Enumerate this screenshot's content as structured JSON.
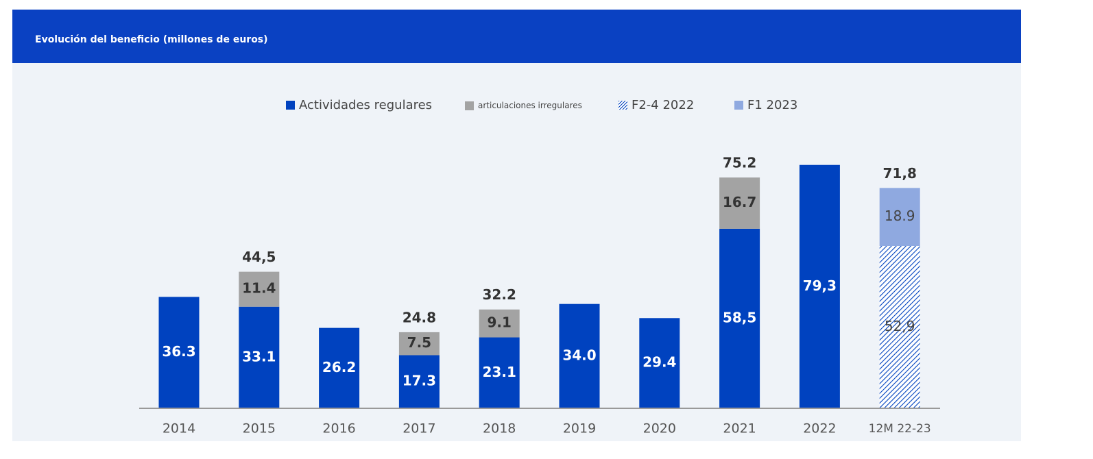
{
  "header": {
    "title": "Evolución del beneficio (millones de euros)"
  },
  "legend": {
    "regular": "Actividades regulares",
    "irregular": "articulaciones irregulares",
    "f24": "F2-4 2022",
    "f1": "F1 2023"
  },
  "colors": {
    "regular": "#0042bf",
    "irregular": "#a3a3a3",
    "f1": "#8fa9e0",
    "header": "#0a41c2"
  },
  "chart_data": {
    "type": "bar",
    "stacked": true,
    "title": "Evolución del beneficio (millones de euros)",
    "categories": [
      "2014",
      "2015",
      "2016",
      "2017",
      "2018",
      "2019",
      "2020",
      "2021",
      "2022",
      "12M 22-23"
    ],
    "series": [
      {
        "name": "Actividades regulares",
        "values": [
          36.3,
          33.1,
          26.2,
          17.3,
          23.1,
          34.0,
          29.4,
          58.5,
          79.3,
          null
        ],
        "labels": [
          "36.3",
          "33.1",
          "26.2",
          "17.3",
          "23.1",
          "34.0",
          "29.4",
          "58,5",
          "79,3",
          null
        ]
      },
      {
        "name": "articulaciones irregulares",
        "values": [
          null,
          11.4,
          null,
          7.5,
          9.1,
          null,
          null,
          16.7,
          null,
          null
        ],
        "labels": [
          null,
          "11.4",
          null,
          "7.5",
          "9.1",
          null,
          null,
          "16.7",
          null,
          null
        ]
      },
      {
        "name": "F2-4 2022",
        "values": [
          null,
          null,
          null,
          null,
          null,
          null,
          null,
          null,
          null,
          52.9
        ],
        "labels": [
          null,
          null,
          null,
          null,
          null,
          null,
          null,
          null,
          null,
          "52,9"
        ]
      },
      {
        "name": "F1 2023",
        "values": [
          null,
          null,
          null,
          null,
          null,
          null,
          null,
          null,
          null,
          18.9
        ],
        "labels": [
          null,
          null,
          null,
          null,
          null,
          null,
          null,
          null,
          null,
          "18.9"
        ]
      }
    ],
    "totals": [
      null,
      "44,5",
      null,
      "24.8",
      "32.2",
      null,
      null,
      "75.2",
      null,
      "71,8"
    ],
    "grid": false,
    "legend_position": "top"
  }
}
